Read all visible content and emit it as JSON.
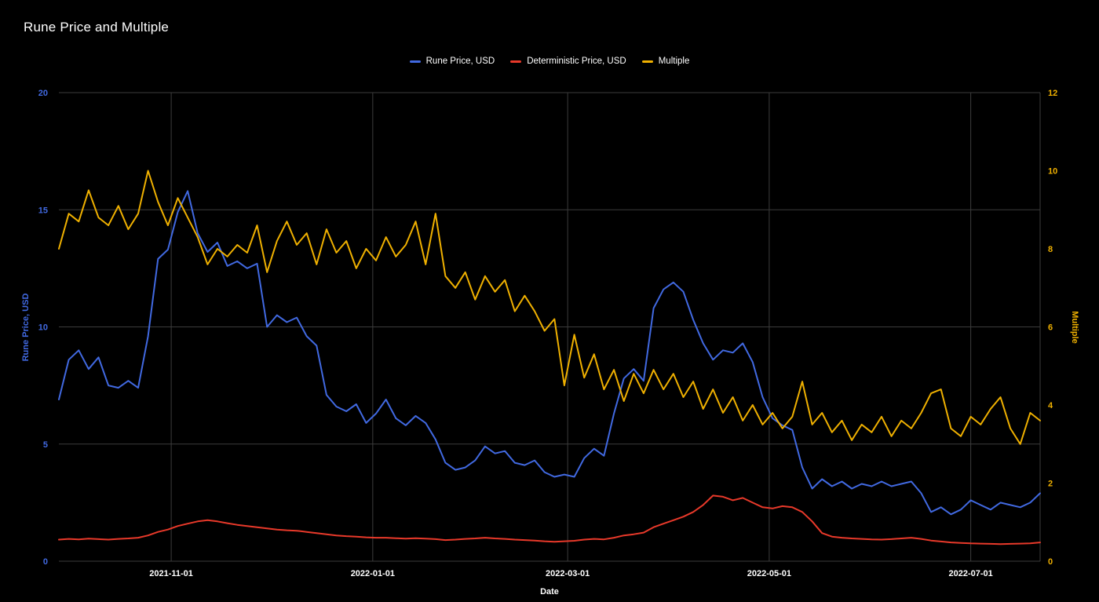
{
  "page": {
    "title": "Rune Price and Multiple"
  },
  "colors": {
    "background": "#000000",
    "grid": "#3c3c3c",
    "title_text": "#ffffff",
    "axis_text": "#ffffff",
    "rune_price": "#4169e1",
    "deterministic_price": "#e8392a",
    "multiple": "#efb000"
  },
  "chart_data": {
    "type": "line",
    "title": "Rune Price and Multiple",
    "xlabel": "Date",
    "y_left_label": "Rune Price, USD",
    "y_right_label": "Multiple",
    "y_left_ticks": [
      0,
      5,
      10,
      15,
      20
    ],
    "y_right_ticks": [
      0,
      2,
      4,
      6,
      8,
      10,
      12
    ],
    "y_left_range": [
      0,
      20
    ],
    "y_right_range": [
      0,
      12
    ],
    "x_ticks": [
      "2021-11-01",
      "2022-01-01",
      "2022-03-01",
      "2022-05-01",
      "2022-07-01"
    ],
    "x_range": [
      "2021-09-28",
      "2022-07-22"
    ],
    "grid": true,
    "legend_position": "top",
    "x": [
      "2021-09-28",
      "2021-10-01",
      "2021-10-04",
      "2021-10-07",
      "2021-10-10",
      "2021-10-13",
      "2021-10-16",
      "2021-10-19",
      "2021-10-22",
      "2021-10-25",
      "2021-10-28",
      "2021-10-31",
      "2021-11-03",
      "2021-11-06",
      "2021-11-09",
      "2021-11-12",
      "2021-11-15",
      "2021-11-18",
      "2021-11-21",
      "2021-11-24",
      "2021-11-27",
      "2021-11-30",
      "2021-12-03",
      "2021-12-06",
      "2021-12-09",
      "2021-12-12",
      "2021-12-15",
      "2021-12-18",
      "2021-12-21",
      "2021-12-24",
      "2021-12-27",
      "2021-12-30",
      "2022-01-02",
      "2022-01-05",
      "2022-01-08",
      "2022-01-11",
      "2022-01-14",
      "2022-01-17",
      "2022-01-20",
      "2022-01-23",
      "2022-01-26",
      "2022-01-29",
      "2022-02-01",
      "2022-02-04",
      "2022-02-07",
      "2022-02-10",
      "2022-02-13",
      "2022-02-16",
      "2022-02-19",
      "2022-02-22",
      "2022-02-25",
      "2022-02-28",
      "2022-03-03",
      "2022-03-06",
      "2022-03-09",
      "2022-03-12",
      "2022-03-15",
      "2022-03-18",
      "2022-03-21",
      "2022-03-24",
      "2022-03-27",
      "2022-03-30",
      "2022-04-02",
      "2022-04-05",
      "2022-04-08",
      "2022-04-11",
      "2022-04-14",
      "2022-04-17",
      "2022-04-20",
      "2022-04-23",
      "2022-04-26",
      "2022-04-29",
      "2022-05-02",
      "2022-05-05",
      "2022-05-08",
      "2022-05-11",
      "2022-05-14",
      "2022-05-17",
      "2022-05-20",
      "2022-05-23",
      "2022-05-26",
      "2022-05-29",
      "2022-06-01",
      "2022-06-04",
      "2022-06-07",
      "2022-06-10",
      "2022-06-13",
      "2022-06-16",
      "2022-06-19",
      "2022-06-22",
      "2022-06-25",
      "2022-06-28",
      "2022-07-01",
      "2022-07-04",
      "2022-07-07",
      "2022-07-10",
      "2022-07-13",
      "2022-07-16",
      "2022-07-19",
      "2022-07-22"
    ],
    "series": [
      {
        "name": "Rune Price, USD",
        "axis": "left",
        "color": "#4169e1",
        "values": [
          6.9,
          8.6,
          9.0,
          8.2,
          8.7,
          7.5,
          7.4,
          7.7,
          7.4,
          9.6,
          12.9,
          13.3,
          14.9,
          15.8,
          14.0,
          13.2,
          13.6,
          12.6,
          12.8,
          12.5,
          12.7,
          10.0,
          10.5,
          10.2,
          10.4,
          9.6,
          9.2,
          7.1,
          6.6,
          6.4,
          6.7,
          5.9,
          6.3,
          6.9,
          6.1,
          5.8,
          6.2,
          5.9,
          5.2,
          4.2,
          3.9,
          4.0,
          4.3,
          4.9,
          4.6,
          4.7,
          4.2,
          4.1,
          4.3,
          3.8,
          3.6,
          3.7,
          3.6,
          4.4,
          4.8,
          4.5,
          6.3,
          7.8,
          8.2,
          7.7,
          10.8,
          11.6,
          11.9,
          11.5,
          10.3,
          9.3,
          8.6,
          9.0,
          8.9,
          9.3,
          8.5,
          7.0,
          6.1,
          5.8,
          5.6,
          4.0,
          3.1,
          3.5,
          3.2,
          3.4,
          3.1,
          3.3,
          3.2,
          3.4,
          3.2,
          3.3,
          3.4,
          2.9,
          2.1,
          2.3,
          2.0,
          2.2,
          2.6,
          2.4,
          2.2,
          2.5,
          2.4,
          2.3,
          2.5,
          2.9
        ]
      },
      {
        "name": "Deterministic Price, USD",
        "axis": "left",
        "color": "#e8392a",
        "values": [
          0.92,
          0.95,
          0.93,
          0.96,
          0.94,
          0.92,
          0.95,
          0.97,
          1.0,
          1.1,
          1.25,
          1.35,
          1.5,
          1.6,
          1.7,
          1.75,
          1.7,
          1.62,
          1.55,
          1.5,
          1.45,
          1.4,
          1.35,
          1.32,
          1.3,
          1.25,
          1.2,
          1.15,
          1.1,
          1.07,
          1.05,
          1.02,
          1.0,
          1.0,
          0.98,
          0.96,
          0.98,
          0.96,
          0.94,
          0.9,
          0.92,
          0.95,
          0.97,
          1.0,
          0.97,
          0.95,
          0.92,
          0.9,
          0.88,
          0.85,
          0.83,
          0.85,
          0.87,
          0.92,
          0.95,
          0.93,
          1.0,
          1.1,
          1.15,
          1.22,
          1.45,
          1.6,
          1.75,
          1.9,
          2.1,
          2.4,
          2.8,
          2.75,
          2.6,
          2.7,
          2.5,
          2.3,
          2.25,
          2.35,
          2.3,
          2.1,
          1.7,
          1.2,
          1.05,
          1.0,
          0.97,
          0.95,
          0.93,
          0.92,
          0.94,
          0.97,
          1.0,
          0.95,
          0.88,
          0.84,
          0.8,
          0.78,
          0.76,
          0.75,
          0.74,
          0.73,
          0.74,
          0.75,
          0.76,
          0.8
        ]
      },
      {
        "name": "Multiple",
        "axis": "right",
        "color": "#efb000",
        "values": [
          8.0,
          8.9,
          8.7,
          9.5,
          8.8,
          8.6,
          9.1,
          8.5,
          8.9,
          10.0,
          9.2,
          8.6,
          9.3,
          8.8,
          8.3,
          7.6,
          8.0,
          7.8,
          8.1,
          7.9,
          8.6,
          7.4,
          8.2,
          8.7,
          8.1,
          8.4,
          7.6,
          8.5,
          7.9,
          8.2,
          7.5,
          8.0,
          7.7,
          8.3,
          7.8,
          8.1,
          8.7,
          7.6,
          8.9,
          7.3,
          7.0,
          7.4,
          6.7,
          7.3,
          6.9,
          7.2,
          6.4,
          6.8,
          6.4,
          5.9,
          6.2,
          4.5,
          5.8,
          4.7,
          5.3,
          4.4,
          4.9,
          4.1,
          4.8,
          4.3,
          4.9,
          4.4,
          4.8,
          4.2,
          4.6,
          3.9,
          4.4,
          3.8,
          4.2,
          3.6,
          4.0,
          3.5,
          3.8,
          3.4,
          3.7,
          4.6,
          3.5,
          3.8,
          3.3,
          3.6,
          3.1,
          3.5,
          3.3,
          3.7,
          3.2,
          3.6,
          3.4,
          3.8,
          4.3,
          4.4,
          3.4,
          3.2,
          3.7,
          3.5,
          3.9,
          4.2,
          3.4,
          3.0,
          3.8,
          3.6
        ]
      }
    ]
  }
}
